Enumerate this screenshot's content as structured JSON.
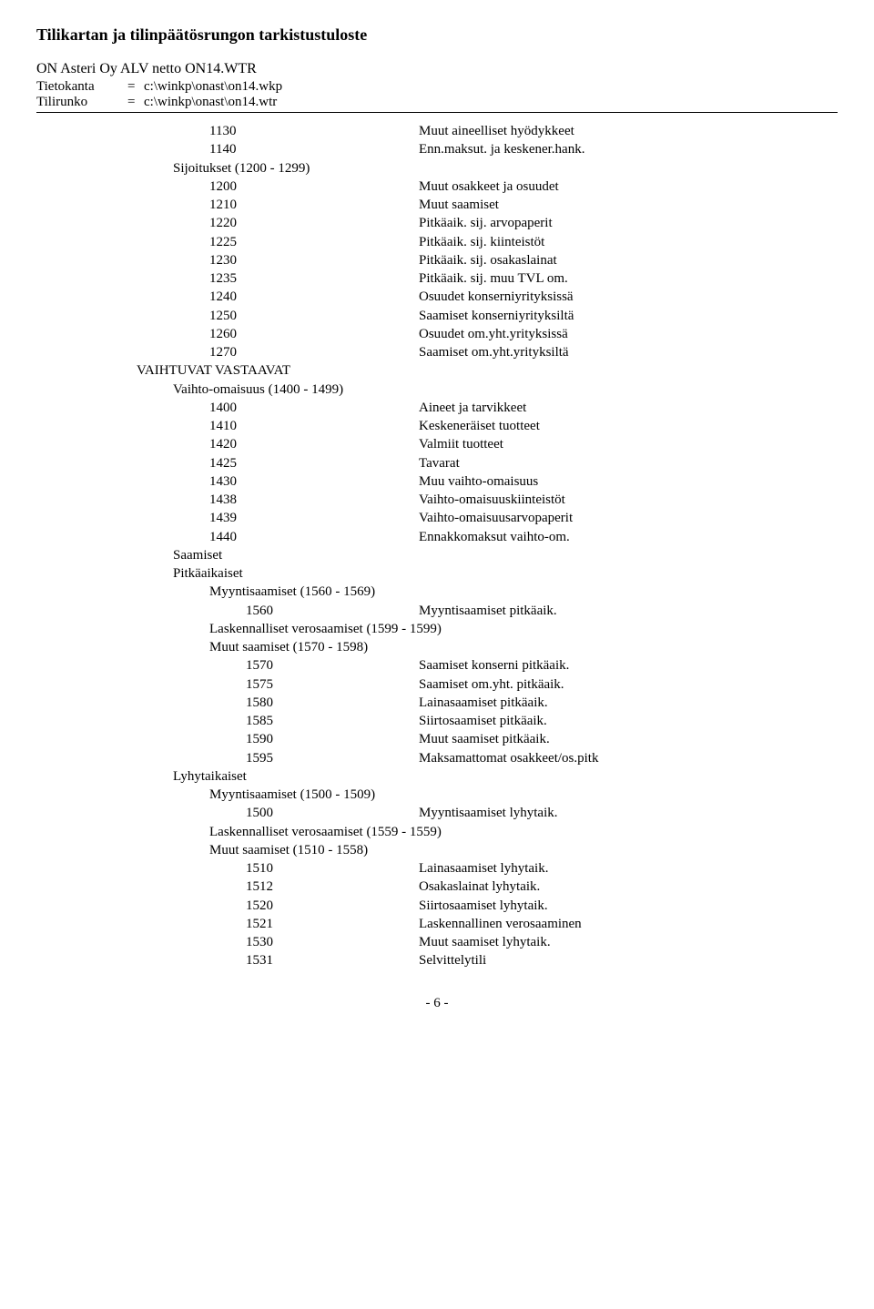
{
  "title": "Tilikartan ja tilinpäätösrungon tarkistustuloste",
  "subtitle": "ON Asteri Oy ALV netto ON14.WTR",
  "meta": {
    "tietokanta_label": "Tietokanta",
    "tietokanta_value": "c:\\winkp\\onast\\on14.wkp",
    "tilirunko_label": "Tilirunko",
    "tilirunko_value": "c:\\winkp\\onast\\on14.wtr"
  },
  "rows": [
    {
      "indent": 2,
      "code": "1130",
      "label": "Muut aineelliset hyödykkeet"
    },
    {
      "indent": 2,
      "code": "1140",
      "label": "Enn.maksut. ja keskener.hank."
    },
    {
      "indent": 1,
      "code": "",
      "label": "Sijoitukset   (1200 - 1299)"
    },
    {
      "indent": 2,
      "code": "1200",
      "label": "Muut osakkeet ja osuudet"
    },
    {
      "indent": 2,
      "code": "1210",
      "label": "Muut saamiset"
    },
    {
      "indent": 2,
      "code": "1220",
      "label": "Pitkäaik. sij. arvopaperit"
    },
    {
      "indent": 2,
      "code": "1225",
      "label": "Pitkäaik. sij. kiinteistöt"
    },
    {
      "indent": 2,
      "code": "1230",
      "label": "Pitkäaik. sij. osakaslainat"
    },
    {
      "indent": 2,
      "code": "1235",
      "label": "Pitkäaik. sij. muu TVL om."
    },
    {
      "indent": 2,
      "code": "1240",
      "label": "Osuudet konserniyrityksissä"
    },
    {
      "indent": 2,
      "code": "1250",
      "label": "Saamiset konserniyrityksiltä"
    },
    {
      "indent": 2,
      "code": "1260",
      "label": "Osuudet om.yht.yrityksissä"
    },
    {
      "indent": 2,
      "code": "1270",
      "label": "Saamiset om.yht.yrityksiltä"
    },
    {
      "indent": 0,
      "code": "",
      "label": "VAIHTUVAT VASTAAVAT"
    },
    {
      "indent": 1,
      "code": "",
      "label": "Vaihto-omaisuus   (1400 - 1499)"
    },
    {
      "indent": 2,
      "code": "1400",
      "label": "Aineet ja tarvikkeet"
    },
    {
      "indent": 2,
      "code": "1410",
      "label": "Keskeneräiset tuotteet"
    },
    {
      "indent": 2,
      "code": "1420",
      "label": "Valmiit tuotteet"
    },
    {
      "indent": 2,
      "code": "1425",
      "label": "Tavarat"
    },
    {
      "indent": 2,
      "code": "1430",
      "label": "Muu vaihto-omaisuus"
    },
    {
      "indent": 2,
      "code": "1438",
      "label": "Vaihto-omaisuuskiinteistöt"
    },
    {
      "indent": 2,
      "code": "1439",
      "label": "Vaihto-omaisuusarvopaperit"
    },
    {
      "indent": 2,
      "code": "1440",
      "label": "Ennakkomaksut vaihto-om."
    },
    {
      "indent": 1,
      "code": "",
      "label": "Saamiset"
    },
    {
      "indent": 1,
      "code": "",
      "label": "Pitkäaikaiset"
    },
    {
      "indent": 2,
      "code": "",
      "label": "Myyntisaamiset   (1560 - 1569)"
    },
    {
      "indent": 3,
      "code": "1560",
      "label": "Myyntisaamiset pitkäaik."
    },
    {
      "indent": 2,
      "code": "",
      "label": "Laskennalliset verosaamiset   (1599 - 1599)"
    },
    {
      "indent": 2,
      "code": "",
      "label": "Muut saamiset   (1570 - 1598)"
    },
    {
      "indent": 3,
      "code": "1570",
      "label": "Saamiset konserni pitkäaik."
    },
    {
      "indent": 3,
      "code": "1575",
      "label": "Saamiset om.yht. pitkäaik."
    },
    {
      "indent": 3,
      "code": "1580",
      "label": "Lainasaamiset pitkäaik."
    },
    {
      "indent": 3,
      "code": "1585",
      "label": "Siirtosaamiset pitkäaik."
    },
    {
      "indent": 3,
      "code": "1590",
      "label": "Muut saamiset pitkäaik."
    },
    {
      "indent": 3,
      "code": "1595",
      "label": "Maksamattomat osakkeet/os.pitk"
    },
    {
      "indent": 1,
      "code": "",
      "label": "Lyhytaikaiset"
    },
    {
      "indent": 2,
      "code": "",
      "label": "Myyntisaamiset   (1500 - 1509)"
    },
    {
      "indent": 3,
      "code": "1500",
      "label": "Myyntisaamiset lyhytaik."
    },
    {
      "indent": 2,
      "code": "",
      "label": "Laskennalliset verosaamiset   (1559 - 1559)"
    },
    {
      "indent": 2,
      "code": "",
      "label": "Muut saamiset   (1510 - 1558)"
    },
    {
      "indent": 3,
      "code": "1510",
      "label": "Lainasaamiset lyhytaik."
    },
    {
      "indent": 3,
      "code": "1512",
      "label": "Osakaslainat lyhytaik."
    },
    {
      "indent": 3,
      "code": "1520",
      "label": "Siirtosaamiset lyhytaik."
    },
    {
      "indent": 3,
      "code": "1521",
      "label": "Laskennallinen verosaaminen"
    },
    {
      "indent": 3,
      "code": "1530",
      "label": "Muut saamiset lyhytaik."
    },
    {
      "indent": 3,
      "code": "1531",
      "label": "Selvittelytili"
    }
  ],
  "pagenum": "- 6 -"
}
